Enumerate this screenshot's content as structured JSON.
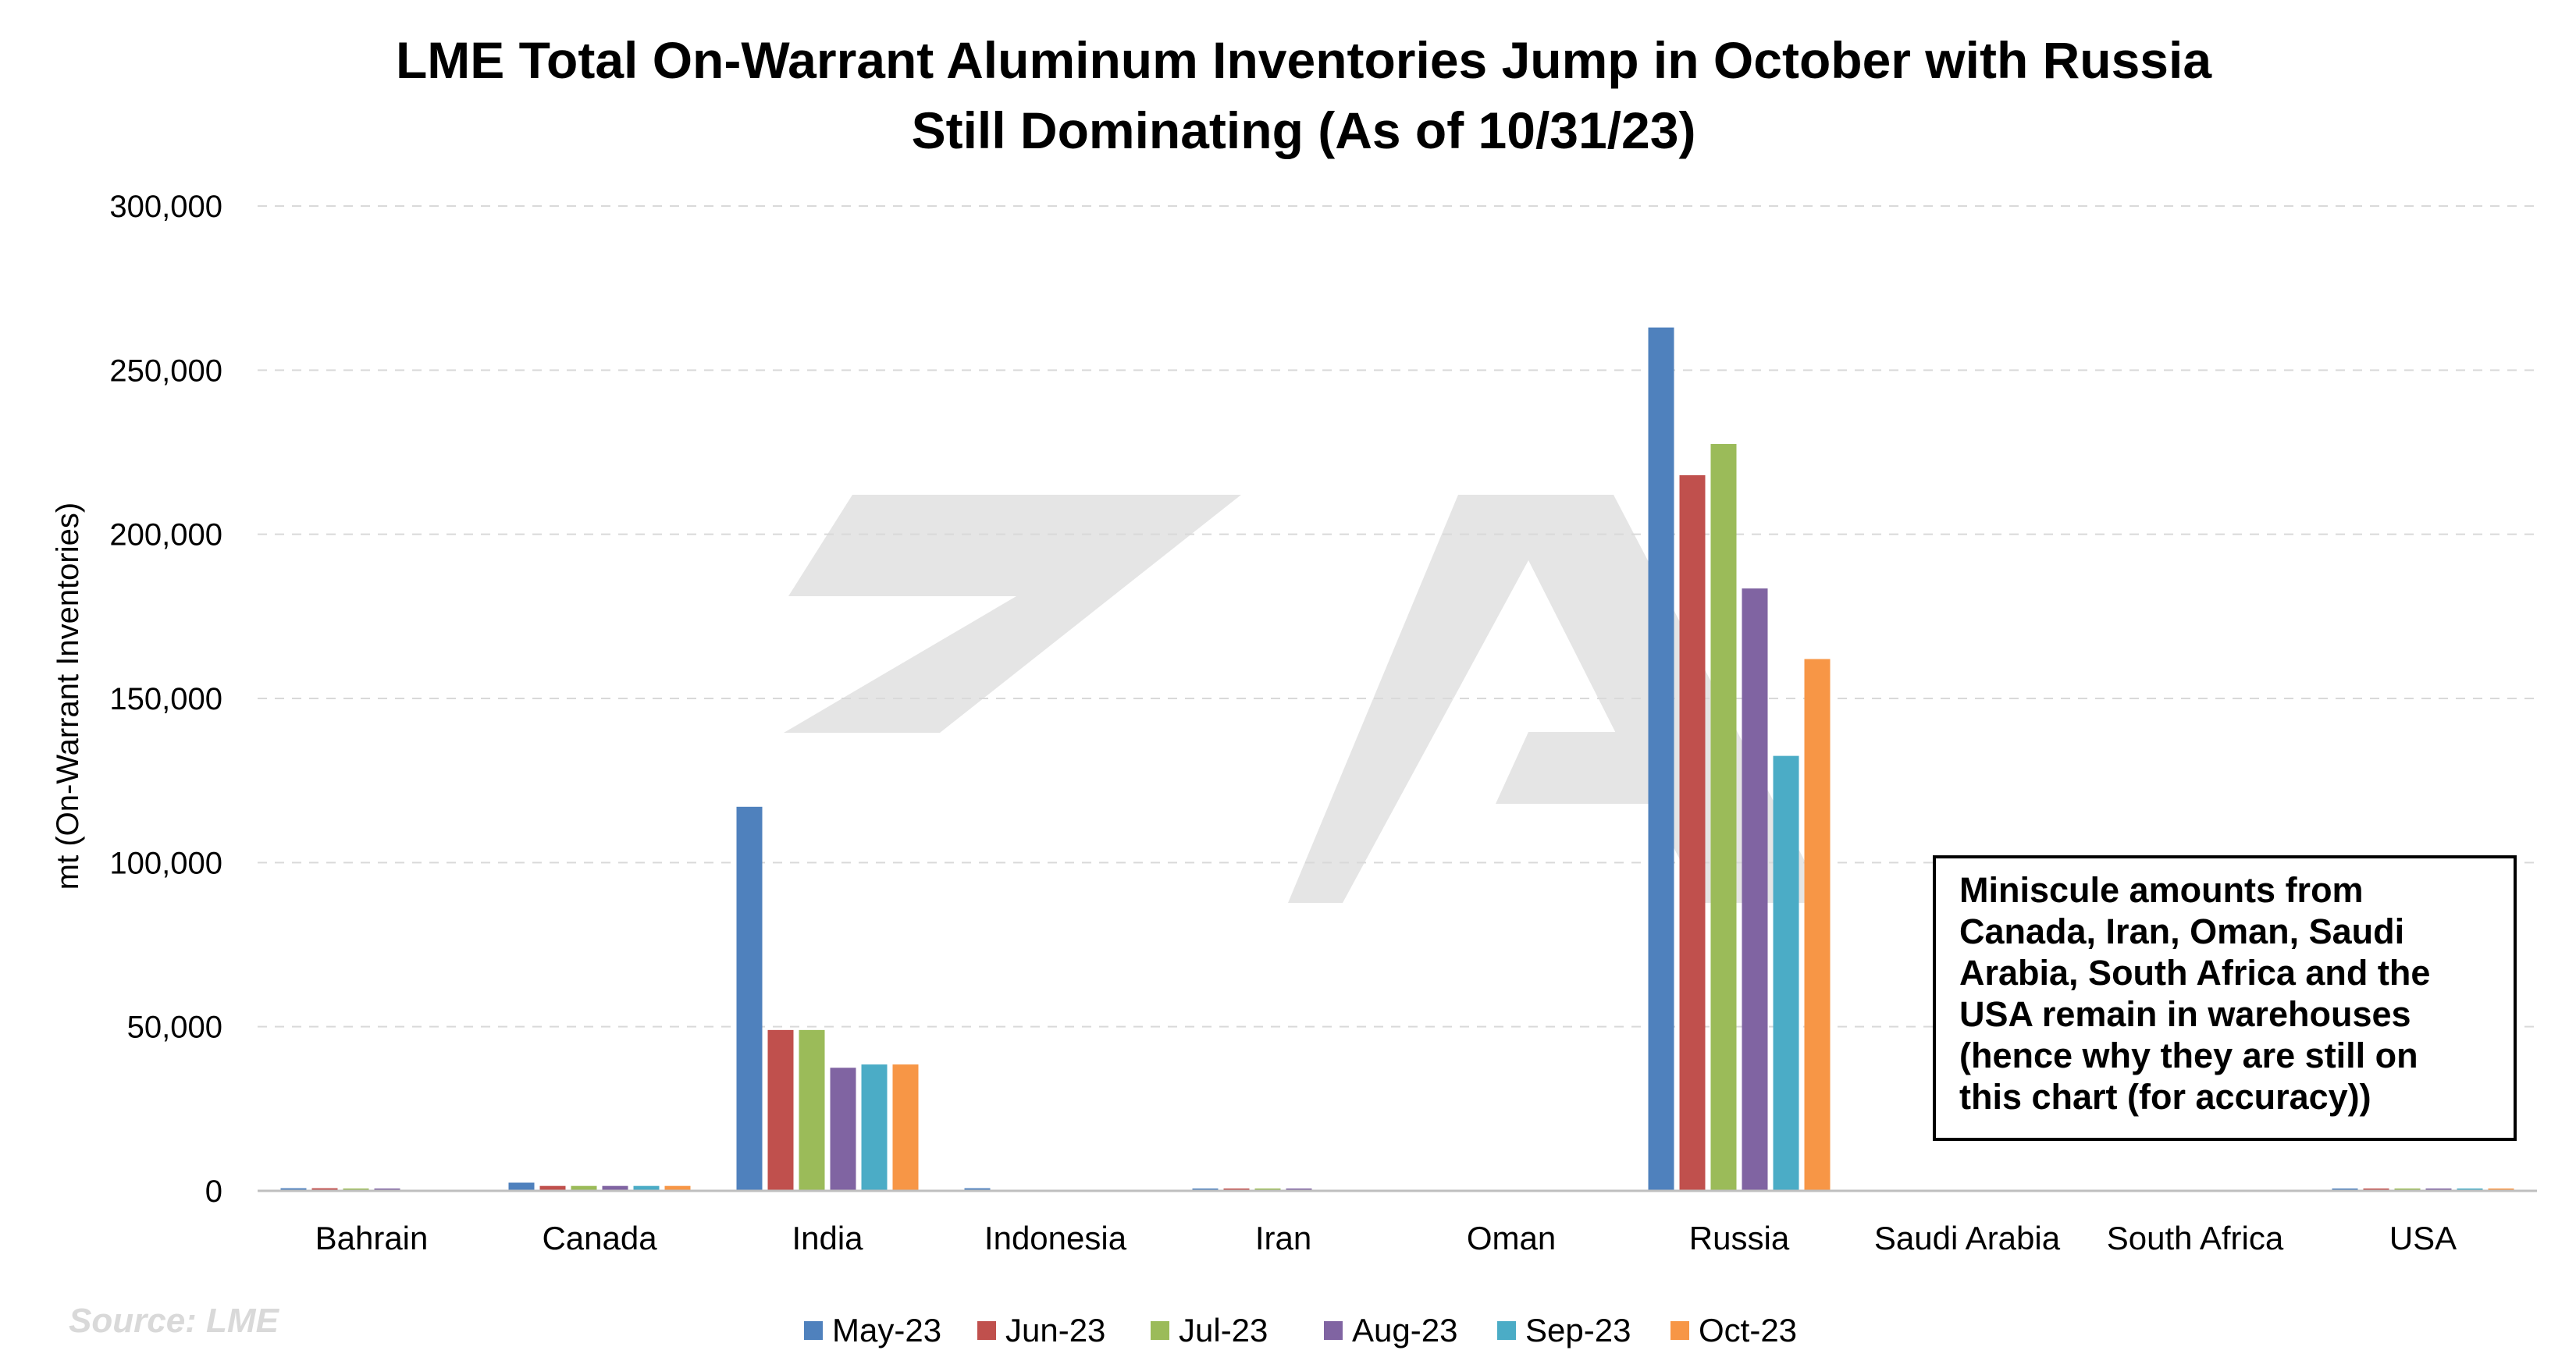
{
  "chart_data": {
    "type": "bar",
    "title_lines": [
      "LME Total On-Warrant Aluminum Inventories Jump in October with Russia",
      "Still Dominating (As of 10/31/23)"
    ],
    "xlabel": "",
    "ylabel": "mt (On-Warrant Inventories)",
    "ylim": [
      0,
      300000
    ],
    "yticks": [
      0,
      50000,
      100000,
      150000,
      200000,
      250000,
      300000
    ],
    "ytick_labels": [
      "0",
      "50,000",
      "100,000",
      "150,000",
      "200,000",
      "250,000",
      "300,000"
    ],
    "grid": "horizontal dashed",
    "legend_position": "bottom",
    "categories": [
      "Bahrain",
      "Canada",
      "India",
      "Indonesia",
      "Iran",
      "Oman",
      "Russia",
      "Saudi Arabia",
      "South Africa",
      "USA"
    ],
    "series": [
      {
        "name": "May-23",
        "color": "#4f81bd",
        "values": [
          800,
          2500,
          117000,
          800,
          200,
          0,
          263000,
          0,
          0,
          500
        ]
      },
      {
        "name": "Jun-23",
        "color": "#c0504d",
        "values": [
          800,
          1500,
          49000,
          0,
          200,
          0,
          218000,
          0,
          0,
          500
        ]
      },
      {
        "name": "Jul-23",
        "color": "#9bbb59",
        "values": [
          700,
          1500,
          49000,
          0,
          200,
          0,
          227500,
          0,
          0,
          500
        ]
      },
      {
        "name": "Aug-23",
        "color": "#8064a2",
        "values": [
          700,
          1500,
          37500,
          0,
          200,
          0,
          183500,
          0,
          0,
          500
        ]
      },
      {
        "name": "Sep-23",
        "color": "#4bacc6",
        "values": [
          0,
          1500,
          38500,
          0,
          0,
          0,
          132500,
          0,
          0,
          500
        ]
      },
      {
        "name": "Oct-23",
        "color": "#f79646",
        "values": [
          0,
          1500,
          38500,
          0,
          0,
          0,
          162000,
          0,
          0,
          500
        ]
      }
    ],
    "annotation": "Miniscule amounts from Canada, Iran, Oman, Saudi Arabia, South Africa and the USA remain in warehouses (hence why they are still on this chart (for accuracy))",
    "source": "Source: LME"
  }
}
